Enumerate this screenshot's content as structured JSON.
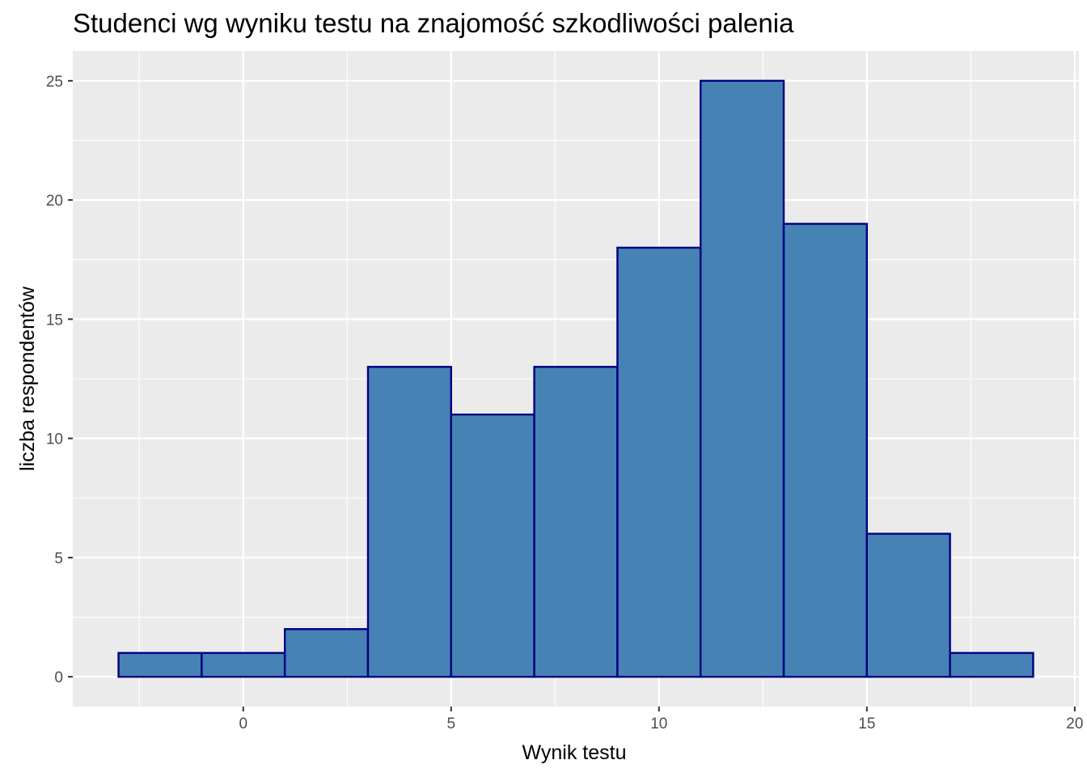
{
  "chart_data": {
    "type": "bar",
    "title": "Studenci wg wyniku testu na znajomość szkodliwości palenia",
    "xlabel": "Wynik testu",
    "ylabel": "liczba respondentów",
    "bins": [
      {
        "x_start": -3,
        "x_end": -1,
        "count": 1
      },
      {
        "x_start": -1,
        "x_end": 1,
        "count": 1
      },
      {
        "x_start": 1,
        "x_end": 3,
        "count": 2
      },
      {
        "x_start": 3,
        "x_end": 5,
        "count": 13
      },
      {
        "x_start": 5,
        "x_end": 7,
        "count": 11
      },
      {
        "x_start": 7,
        "x_end": 9,
        "count": 13
      },
      {
        "x_start": 9,
        "x_end": 11,
        "count": 18
      },
      {
        "x_start": 11,
        "x_end": 13,
        "count": 25
      },
      {
        "x_start": 13,
        "x_end": 15,
        "count": 19
      },
      {
        "x_start": 15,
        "x_end": 17,
        "count": 6
      },
      {
        "x_start": 17,
        "x_end": 19,
        "count": 1
      }
    ],
    "xlim": [
      -4.1,
      20.1
    ],
    "ylim": [
      -1.25,
      26.25
    ],
    "x_ticks": [
      0,
      5,
      10,
      15,
      20
    ],
    "y_ticks": [
      0,
      5,
      10,
      15,
      20,
      25
    ],
    "x_tick_labels": [
      "0",
      "5",
      "10",
      "15",
      "20"
    ],
    "y_tick_labels": [
      "0",
      "5",
      "10",
      "15",
      "20",
      "25"
    ],
    "grid": true,
    "bar_fill": "#4682b4",
    "bar_outline": "#000080",
    "panel_background": "#ebebeb"
  }
}
